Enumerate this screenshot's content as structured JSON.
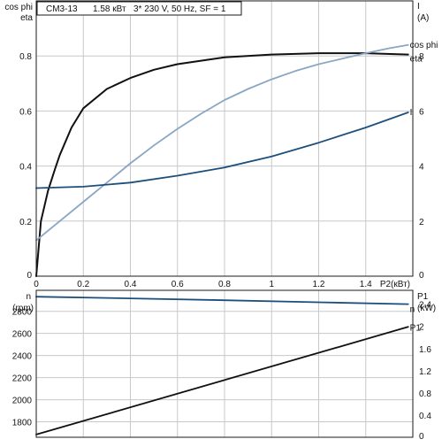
{
  "header": {
    "model": "CM3-13",
    "power": "1.58 кВт",
    "supply": "3* 230 V, 50 Hz, SF = 1"
  },
  "chart_data": [
    {
      "type": "line",
      "name": "upper",
      "x_label": "P2(кВт)",
      "x_range": [
        0,
        1.6
      ],
      "x_ticks": [
        0,
        0.2,
        0.4,
        0.6,
        0.8,
        1,
        1.2,
        1.4
      ],
      "y_left_labels": [
        "cos phi",
        "eta"
      ],
      "y_left_range": [
        0,
        1
      ],
      "y_left_ticks": [
        0.2,
        0.4,
        0.6,
        0.8
      ],
      "y_right_labels": [
        "I",
        "(A)"
      ],
      "y_right_range": [
        0,
        10
      ],
      "y_right_ticks": [
        0,
        2,
        4,
        6,
        8
      ],
      "grid": true,
      "series": [
        {
          "name": "eta",
          "axis": "left",
          "color": "#111111",
          "x": [
            0,
            0.02,
            0.05,
            0.08,
            0.1,
            0.15,
            0.2,
            0.3,
            0.4,
            0.5,
            0.6,
            0.8,
            1.0,
            1.2,
            1.4,
            1.58
          ],
          "y": [
            0,
            0.2,
            0.31,
            0.39,
            0.44,
            0.54,
            0.61,
            0.68,
            0.72,
            0.75,
            0.77,
            0.795,
            0.805,
            0.81,
            0.81,
            0.805
          ]
        },
        {
          "name": "cos phi",
          "axis": "left",
          "color": "#8aa6c4",
          "x": [
            0,
            0.1,
            0.2,
            0.3,
            0.4,
            0.5,
            0.6,
            0.7,
            0.8,
            0.9,
            1.0,
            1.1,
            1.2,
            1.3,
            1.4,
            1.5,
            1.58
          ],
          "y": [
            0.13,
            0.2,
            0.27,
            0.34,
            0.41,
            0.475,
            0.535,
            0.59,
            0.64,
            0.68,
            0.715,
            0.745,
            0.77,
            0.79,
            0.81,
            0.828,
            0.84
          ]
        },
        {
          "name": "I",
          "axis": "right",
          "color": "#1d4f7c",
          "x": [
            0,
            0.2,
            0.4,
            0.6,
            0.8,
            1.0,
            1.2,
            1.4,
            1.58
          ],
          "y": [
            3.2,
            3.25,
            3.4,
            3.65,
            3.95,
            4.35,
            4.85,
            5.4,
            5.95
          ]
        }
      ]
    },
    {
      "type": "line",
      "name": "lower",
      "x_range": [
        0,
        1.6
      ],
      "y_left_labels": [
        "n",
        "(rpm)"
      ],
      "y_left_range": [
        1660,
        2990
      ],
      "y_left_ticks": [
        1800,
        2000,
        2200,
        2400,
        2600,
        2800
      ],
      "y_right_labels": [
        "P1",
        "(kW)"
      ],
      "y_right_range": [
        0,
        2.65
      ],
      "y_right_ticks": [
        0,
        0.4,
        0.8,
        1.2,
        1.6,
        2,
        2.4
      ],
      "grid": true,
      "series": [
        {
          "name": "n",
          "axis": "left",
          "color": "#1d4f7c",
          "x": [
            0,
            0.4,
            0.8,
            1.2,
            1.58
          ],
          "y": [
            2932,
            2917,
            2900,
            2882,
            2865
          ]
        },
        {
          "name": "P1",
          "axis": "right",
          "color": "#111111",
          "x": [
            0,
            1.58
          ],
          "y": [
            0.05,
            1.99
          ]
        }
      ]
    }
  ]
}
